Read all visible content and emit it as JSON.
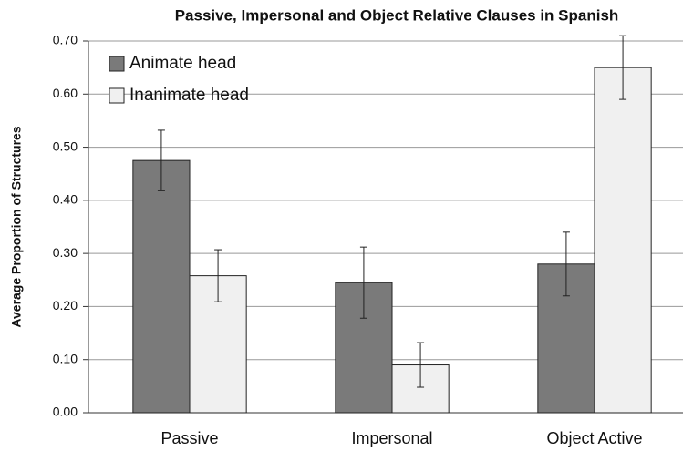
{
  "chart_data": {
    "type": "bar",
    "title": "Passive, Impersonal and Object Relative Clauses in Spanish",
    "y_label": "Average Proportion of  Structures",
    "categories": [
      "Passive",
      "Impersonal",
      "Object Active"
    ],
    "series": [
      {
        "name": "Animate head",
        "color": "#7a7a7a",
        "values": [
          0.475,
          0.245,
          0.28
        ],
        "errors": [
          0.057,
          0.067,
          0.06
        ]
      },
      {
        "name": "Inanimate head",
        "color": "#f0f0f0",
        "values": [
          0.258,
          0.09,
          0.65
        ],
        "errors": [
          0.049,
          0.042,
          0.06
        ]
      }
    ],
    "ylim": [
      0,
      0.7
    ],
    "yticks": [
      {
        "value": 0,
        "label": "0.00"
      },
      {
        "value": 0.1,
        "label": "0.10"
      },
      {
        "value": 0.2,
        "label": "0.20"
      },
      {
        "value": 0.3,
        "label": "0.30"
      },
      {
        "value": 0.4,
        "label": "0.40"
      },
      {
        "value": 0.5,
        "label": "0.50"
      },
      {
        "value": 0.6,
        "label": "0.60"
      },
      {
        "value": 0.7,
        "label": "0.70"
      }
    ],
    "grid": true,
    "legend": "top-left"
  }
}
